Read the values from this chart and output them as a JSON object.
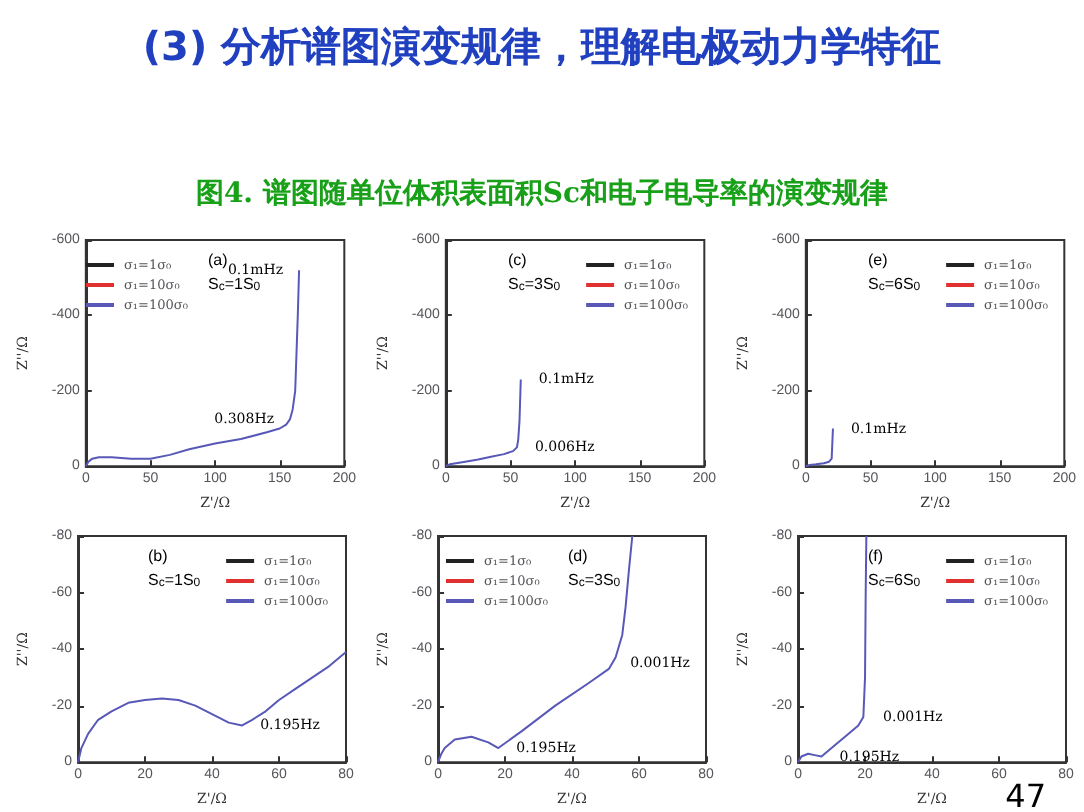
{
  "chart_data": [
    {
      "type": "line",
      "title": "(3) 分析谱图演变规律，理解电极动力学特征",
      "subtitle": "图4. 谱图随单位体积表面积Sc和电子电导率的演变规律",
      "xlabel": "Z'/Ω",
      "ylabel": "Z''/Ω",
      "xlim": [
        0,
        200
      ],
      "xticks": [
        0,
        50,
        100,
        150,
        200
      ],
      "ylim": [
        0,
        -600
      ],
      "yticks": [
        0,
        -200,
        -400,
        -600
      ],
      "legend": "top left",
      "grid": false,
      "marker": "none",
      "line_style": "solid",
      "x": [
        0,
        2,
        5,
        10,
        20,
        35,
        50,
        65,
        80,
        100,
        120,
        140,
        150,
        155,
        158,
        160,
        162,
        163,
        164,
        165
      ],
      "series": [
        {
          "name": "σ₁=1σ₀",
          "color": "#222222",
          "values": [
            null,
            null,
            null,
            null,
            null,
            null,
            null,
            null,
            null,
            null,
            null,
            null,
            null,
            null,
            null,
            null,
            null,
            null,
            null,
            null
          ]
        },
        {
          "name": "σ₁=10σ₀",
          "color": "#e03030",
          "values": [
            null,
            null,
            null,
            null,
            null,
            null,
            null,
            null,
            null,
            null,
            null,
            null,
            null,
            null,
            null,
            null,
            null,
            null,
            null,
            null
          ]
        },
        {
          "name": "σ₁=100σ₀",
          "color": "#5858b8",
          "values": [
            0,
            -12,
            -20,
            -24,
            -24,
            -20,
            -20,
            -30,
            -45,
            -60,
            -72,
            -90,
            -100,
            -110,
            -125,
            -150,
            -200,
            -300,
            -400,
            -520
          ]
        }
      ],
      "annotations": [
        "(a)",
        "S$_{c}$=1S$_{0}$",
        {
          "text": "0.1mHz",
          "x": 165,
          "y": -520
        },
        {
          "text": "0.308Hz",
          "x": 158,
          "y": -125
        }
      ]
    },
    {
      "type": "line",
      "xlabel": "Z'/Ω",
      "ylabel": "Z''/Ω",
      "xlim": [
        0,
        200
      ],
      "xticks": [
        0,
        50,
        100,
        150,
        200
      ],
      "ylim": [
        0,
        -600
      ],
      "yticks": [
        0,
        -200,
        -400,
        -600
      ],
      "legend": "top right",
      "grid": false,
      "marker": "none",
      "line_style": "solid",
      "x": [
        0,
        3,
        8,
        15,
        25,
        35,
        45,
        52,
        55,
        56,
        57,
        58
      ],
      "series": [
        {
          "name": "σ₁=1σ₀",
          "color": "#222222",
          "values": [
            null,
            null,
            null,
            null,
            null,
            null,
            null,
            null,
            null,
            null,
            null,
            null
          ]
        },
        {
          "name": "σ₁=10σ₀",
          "color": "#e03030",
          "values": [
            null,
            null,
            null,
            null,
            null,
            null,
            null,
            null,
            null,
            null,
            null,
            null
          ]
        },
        {
          "name": "σ₁=100σ₀",
          "color": "#5858b8",
          "values": [
            0,
            -5,
            -8,
            -12,
            -18,
            -25,
            -32,
            -40,
            -50,
            -70,
            -120,
            -230
          ]
        }
      ],
      "annotations": [
        "(c)",
        "S$_{c}$=3S$_{0}$",
        {
          "text": "0.1mHz",
          "x": 58,
          "y": -230
        },
        {
          "text": "0.006Hz",
          "x": 55,
          "y": -50
        }
      ]
    },
    {
      "type": "line",
      "xlabel": "Z'/Ω",
      "ylabel": "Z''/Ω",
      "xlim": [
        0,
        200
      ],
      "xticks": [
        0,
        50,
        100,
        150,
        200
      ],
      "ylim": [
        0,
        -600
      ],
      "yticks": [
        0,
        -200,
        -400,
        -600
      ],
      "legend": "top right",
      "grid": false,
      "marker": "none",
      "line_style": "solid",
      "x": [
        0,
        3,
        8,
        14,
        18,
        20,
        20.5,
        21
      ],
      "series": [
        {
          "name": "σ₁=1σ₀",
          "color": "#222222",
          "values": [
            null,
            null,
            null,
            null,
            null,
            null,
            null,
            null
          ]
        },
        {
          "name": "σ₁=10σ₀",
          "color": "#e03030",
          "values": [
            null,
            null,
            null,
            null,
            null,
            null,
            null,
            null
          ]
        },
        {
          "name": "σ₁=100σ₀",
          "color": "#5858b8",
          "values": [
            0,
            -3,
            -5,
            -8,
            -12,
            -20,
            -60,
            -100
          ]
        }
      ],
      "annotations": [
        "(e)",
        "S$_{c}$=6S$_{0}$",
        {
          "text": "0.1mHz",
          "x": 21,
          "y": -100
        }
      ]
    },
    {
      "type": "line",
      "xlabel": "Z'/Ω",
      "ylabel": "Z''/Ω",
      "xlim": [
        0,
        80
      ],
      "xticks": [
        0,
        20,
        40,
        60,
        80
      ],
      "ylim": [
        0,
        -80
      ],
      "yticks": [
        0,
        -20,
        -40,
        -60,
        -80
      ],
      "legend": "top right",
      "grid": false,
      "marker": "none",
      "line_style": "solid",
      "x": [
        0,
        1,
        3,
        6,
        10,
        15,
        20,
        25,
        30,
        35,
        40,
        45,
        49,
        52,
        56,
        60,
        65,
        70,
        75,
        80
      ],
      "series": [
        {
          "name": "σ₁=1σ₀",
          "color": "#222222",
          "values": [
            null,
            null,
            null,
            null,
            null,
            null,
            null,
            null,
            null,
            null,
            null,
            null,
            null,
            null,
            null,
            null,
            null,
            null,
            null,
            null
          ]
        },
        {
          "name": "σ₁=10σ₀",
          "color": "#e03030",
          "values": [
            null,
            null,
            null,
            null,
            null,
            null,
            null,
            null,
            null,
            null,
            null,
            null,
            null,
            null,
            null,
            null,
            null,
            null,
            null,
            null
          ]
        },
        {
          "name": "σ₁=100σ₀",
          "color": "#5858b8",
          "values": [
            0,
            -5,
            -10,
            -15,
            -18,
            -21,
            -22,
            -22.5,
            -22,
            -20,
            -17,
            -14,
            -13,
            -15,
            -18,
            -22,
            -26,
            -30,
            -34,
            -39
          ]
        }
      ],
      "annotations": [
        "(b)",
        "S$_{c}$=1S$_{0}$",
        {
          "text": "0.195Hz",
          "x": 49,
          "y": -13
        }
      ]
    },
    {
      "type": "line",
      "xlabel": "Z'/Ω",
      "ylabel": "Z''/Ω",
      "xlim": [
        0,
        80
      ],
      "xticks": [
        0,
        20,
        40,
        60,
        80
      ],
      "ylim": [
        0,
        -80
      ],
      "yticks": [
        0,
        -20,
        -40,
        -60,
        -80
      ],
      "legend": "top left",
      "grid": false,
      "marker": "none",
      "line_style": "solid",
      "x": [
        0,
        1,
        2,
        5,
        10,
        15,
        18,
        25,
        35,
        45,
        51,
        53,
        55,
        56,
        57,
        58
      ],
      "series": [
        {
          "name": "σ₁=1σ₀",
          "color": "#222222",
          "values": [
            null,
            null,
            null,
            null,
            null,
            null,
            null,
            null,
            null,
            null,
            null,
            null,
            null,
            null,
            null,
            null
          ]
        },
        {
          "name": "σ₁=10σ₀",
          "color": "#e03030",
          "values": [
            null,
            null,
            null,
            null,
            null,
            null,
            null,
            null,
            null,
            null,
            null,
            null,
            null,
            null,
            null,
            null
          ]
        },
        {
          "name": "σ₁=100σ₀",
          "color": "#5858b8",
          "values": [
            0,
            -3,
            -5,
            -8,
            -9,
            -7,
            -5,
            -11,
            -20,
            -28,
            -33,
            -37,
            -45,
            -55,
            -68,
            -80
          ]
        }
      ],
      "annotations": [
        "(d)",
        "S$_{c}$=3S$_{0}$",
        {
          "text": "0.001Hz",
          "x": 52,
          "y": -35
        },
        {
          "text": "0.195Hz",
          "x": 18,
          "y": -5
        }
      ]
    },
    {
      "type": "line",
      "xlabel": "Z'/Ω",
      "ylabel": "Z''/Ω",
      "xlim": [
        0,
        80
      ],
      "xticks": [
        0,
        20,
        40,
        60,
        80
      ],
      "ylim": [
        0,
        -80
      ],
      "yticks": [
        0,
        -20,
        -40,
        -60,
        -80
      ],
      "legend": "top right",
      "grid": false,
      "marker": "none",
      "line_style": "solid",
      "x": [
        0,
        1,
        3,
        5,
        7,
        10,
        15,
        18,
        19.5,
        20,
        20.2,
        20.4
      ],
      "series": [
        {
          "name": "σ₁=1σ₀",
          "color": "#222222",
          "values": [
            null,
            null,
            null,
            null,
            null,
            null,
            null,
            null,
            null,
            null,
            null,
            null
          ]
        },
        {
          "name": "σ₁=10σ₀",
          "color": "#e03030",
          "values": [
            null,
            null,
            null,
            null,
            null,
            null,
            null,
            null,
            null,
            null,
            null,
            null
          ]
        },
        {
          "name": "σ₁=100σ₀",
          "color": "#5858b8",
          "values": [
            0,
            -2,
            -3,
            -2.5,
            -2,
            -5,
            -10,
            -13,
            -16,
            -30,
            -60,
            -80
          ]
        }
      ],
      "annotations": [
        "(f)",
        "S$_{c}$=6S$_{0}$",
        {
          "text": "0.001Hz",
          "x": 20,
          "y": -16
        },
        {
          "text": "0.195Hz",
          "x": 7,
          "y": -2
        },
        "47"
      ]
    }
  ]
}
